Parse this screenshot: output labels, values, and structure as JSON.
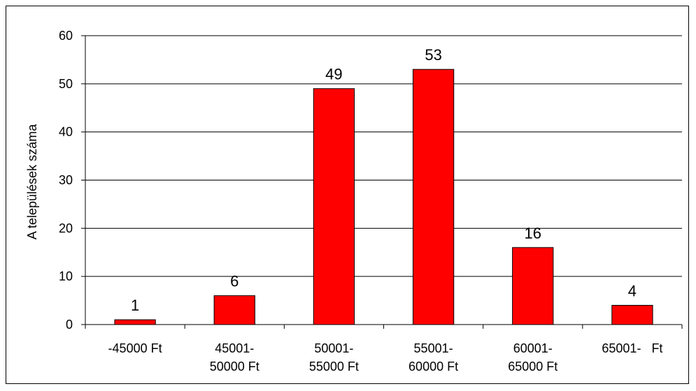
{
  "chart_data": {
    "type": "bar",
    "categories": [
      [
        "-45000 Ft"
      ],
      [
        "45001-",
        "50000 Ft"
      ],
      [
        "50001-",
        "55000 Ft"
      ],
      [
        "55001-",
        "60000 Ft"
      ],
      [
        "60001-",
        "65000 Ft"
      ],
      [
        "65001-   Ft"
      ]
    ],
    "values": [
      1,
      6,
      49,
      53,
      16,
      4
    ],
    "data_labels": [
      "1",
      "6",
      "49",
      "53",
      "16",
      "4"
    ],
    "title": "",
    "xlabel": "",
    "ylabel": "A települések száma",
    "ylim": [
      0,
      60
    ],
    "yticks": [
      "0",
      "10",
      "20",
      "30",
      "40",
      "50",
      "60"
    ],
    "grid": true,
    "bar_color": "#ff0000"
  }
}
